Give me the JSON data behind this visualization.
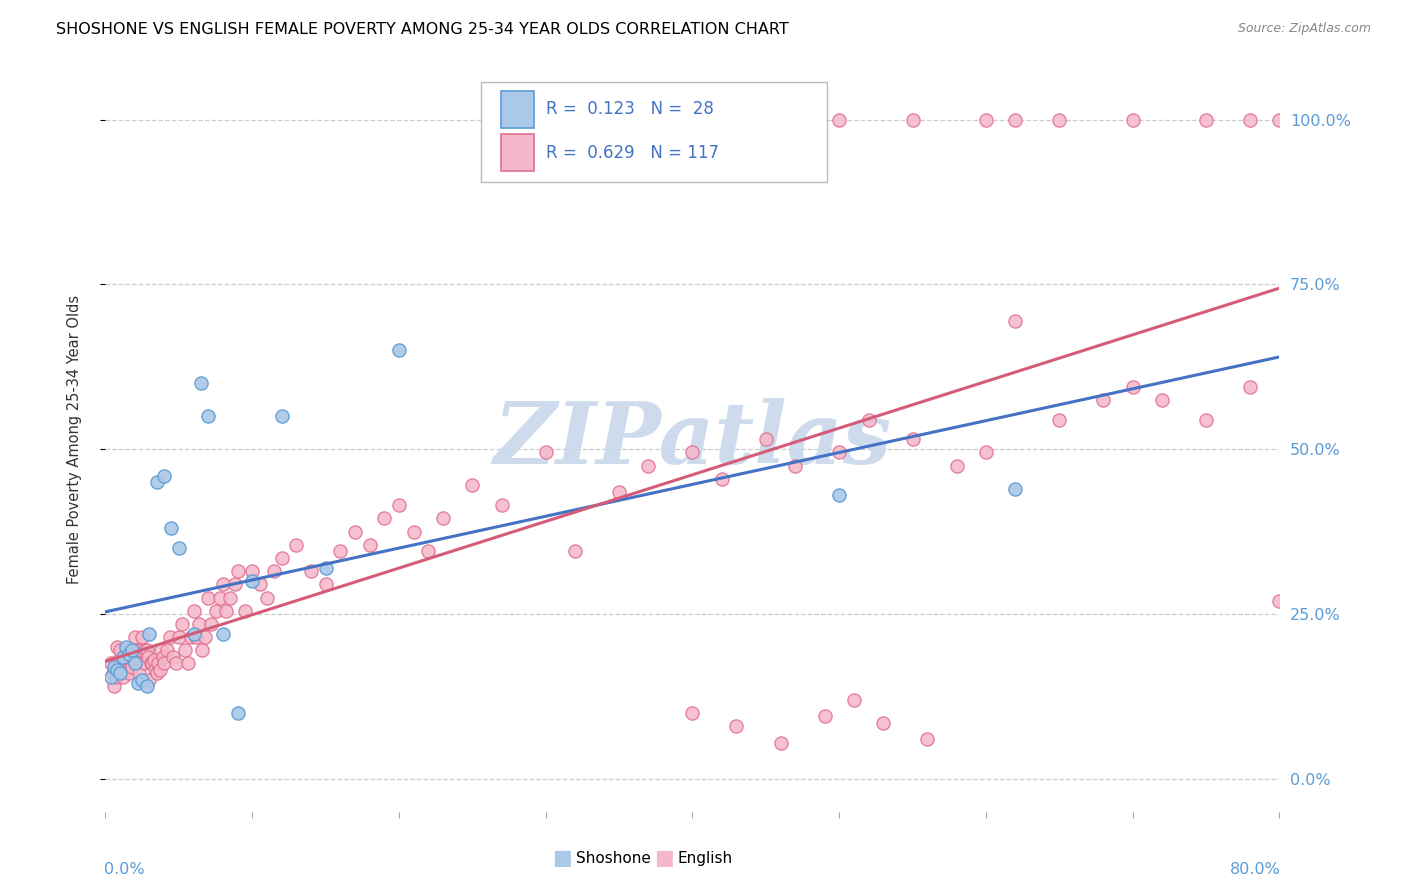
{
  "title": "SHOSHONE VS ENGLISH FEMALE POVERTY AMONG 25-34 YEAR OLDS CORRELATION CHART",
  "source": "Source: ZipAtlas.com",
  "ylabel": "Female Poverty Among 25-34 Year Olds",
  "xlim": [
    0.0,
    0.8
  ],
  "ylim": [
    -0.05,
    1.08
  ],
  "shoshone_color": "#aac8e8",
  "shoshone_edge_color": "#5b9bd5",
  "english_color": "#f5b8cb",
  "english_edge_color": "#e07090",
  "shoshone_line_color": "#4472c4",
  "english_line_color": "#d45c78",
  "grid_color": "#cccccc",
  "watermark_color": "#c8d8ea",
  "ytick_values": [
    0.0,
    0.25,
    0.5,
    0.75,
    1.0
  ],
  "ytick_labels": [
    "0.0%",
    "25.0%",
    "50.0%",
    "75.0%",
    "100.0%"
  ],
  "shoshone_x": [
    0.004,
    0.006,
    0.008,
    0.01,
    0.012,
    0.014,
    0.016,
    0.018,
    0.02,
    0.022,
    0.025,
    0.028,
    0.03,
    0.035,
    0.04,
    0.045,
    0.05,
    0.06,
    0.065,
    0.07,
    0.08,
    0.09,
    0.1,
    0.12,
    0.15,
    0.2,
    0.5,
    0.62
  ],
  "shoshone_y": [
    0.155,
    0.17,
    0.165,
    0.16,
    0.185,
    0.2,
    0.19,
    0.195,
    0.175,
    0.145,
    0.15,
    0.14,
    0.22,
    0.45,
    0.46,
    0.38,
    0.35,
    0.22,
    0.6,
    0.55,
    0.22,
    0.1,
    0.3,
    0.55,
    0.32,
    0.65,
    0.43,
    0.44
  ],
  "english_x": [
    0.004,
    0.005,
    0.006,
    0.007,
    0.008,
    0.009,
    0.01,
    0.011,
    0.012,
    0.013,
    0.014,
    0.015,
    0.016,
    0.017,
    0.018,
    0.019,
    0.02,
    0.021,
    0.022,
    0.023,
    0.024,
    0.025,
    0.026,
    0.027,
    0.028,
    0.029,
    0.03,
    0.031,
    0.032,
    0.033,
    0.034,
    0.035,
    0.036,
    0.037,
    0.038,
    0.039,
    0.04,
    0.042,
    0.044,
    0.046,
    0.048,
    0.05,
    0.052,
    0.054,
    0.056,
    0.058,
    0.06,
    0.062,
    0.064,
    0.066,
    0.068,
    0.07,
    0.072,
    0.075,
    0.078,
    0.08,
    0.082,
    0.085,
    0.088,
    0.09,
    0.095,
    0.1,
    0.105,
    0.11,
    0.115,
    0.12,
    0.13,
    0.14,
    0.15,
    0.16,
    0.17,
    0.18,
    0.19,
    0.2,
    0.21,
    0.22,
    0.23,
    0.25,
    0.27,
    0.3,
    0.32,
    0.35,
    0.37,
    0.4,
    0.42,
    0.45,
    0.47,
    0.5,
    0.52,
    0.55,
    0.58,
    0.6,
    0.62,
    0.65,
    0.68,
    0.7,
    0.72,
    0.75,
    0.78,
    0.8,
    0.45,
    0.5,
    0.55,
    0.6,
    0.62,
    0.65,
    0.7,
    0.75,
    0.78,
    0.8,
    0.4,
    0.43,
    0.46,
    0.49,
    0.51,
    0.53,
    0.56
  ],
  "english_y": [
    0.175,
    0.16,
    0.14,
    0.155,
    0.2,
    0.18,
    0.195,
    0.17,
    0.155,
    0.175,
    0.165,
    0.195,
    0.16,
    0.175,
    0.17,
    0.185,
    0.215,
    0.175,
    0.195,
    0.16,
    0.195,
    0.215,
    0.175,
    0.195,
    0.195,
    0.185,
    0.15,
    0.175,
    0.175,
    0.18,
    0.165,
    0.16,
    0.175,
    0.165,
    0.195,
    0.185,
    0.175,
    0.195,
    0.215,
    0.185,
    0.175,
    0.215,
    0.235,
    0.195,
    0.175,
    0.215,
    0.255,
    0.215,
    0.235,
    0.195,
    0.215,
    0.275,
    0.235,
    0.255,
    0.275,
    0.295,
    0.255,
    0.275,
    0.295,
    0.315,
    0.255,
    0.315,
    0.295,
    0.275,
    0.315,
    0.335,
    0.355,
    0.315,
    0.295,
    0.345,
    0.375,
    0.355,
    0.395,
    0.415,
    0.375,
    0.345,
    0.395,
    0.445,
    0.415,
    0.495,
    0.345,
    0.435,
    0.475,
    0.495,
    0.455,
    0.515,
    0.475,
    0.495,
    0.545,
    0.515,
    0.475,
    0.495,
    0.695,
    0.545,
    0.575,
    0.595,
    0.575,
    0.545,
    0.595,
    0.27,
    1.0,
    1.0,
    1.0,
    1.0,
    1.0,
    1.0,
    1.0,
    1.0,
    1.0,
    1.0,
    0.1,
    0.08,
    0.055,
    0.095,
    0.12,
    0.085,
    0.06
  ]
}
